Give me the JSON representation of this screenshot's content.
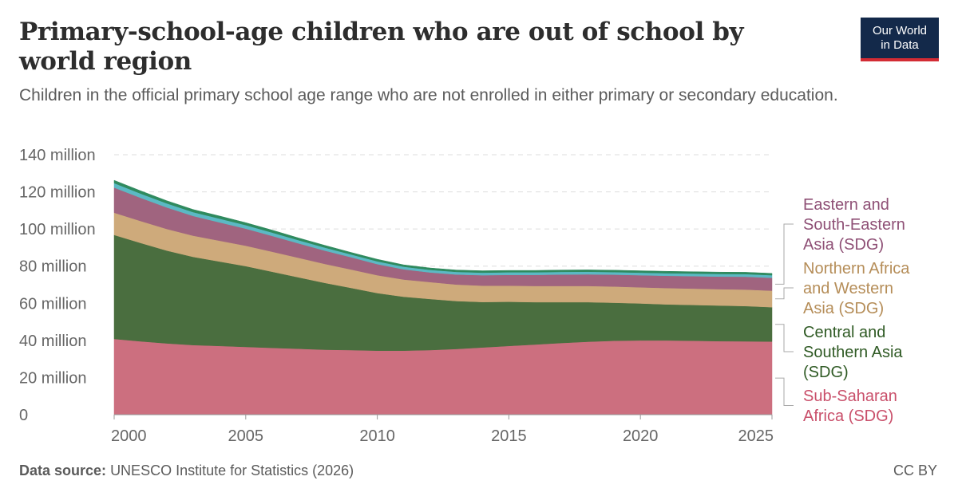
{
  "title": "Primary-school-age children who are out of school by world region",
  "subtitle": "Children in the official primary school age range who are not enrolled in either primary or secondary education.",
  "logo": {
    "line1": "Our World",
    "line2": "in Data"
  },
  "footer": {
    "source_label": "Data source:",
    "source_text": "UNESCO Institute for Statistics (2026)",
    "license": "CC BY"
  },
  "chart_data": {
    "type": "area",
    "stacked": true,
    "x": [
      2000,
      2001,
      2002,
      2003,
      2004,
      2005,
      2006,
      2007,
      2008,
      2009,
      2010,
      2011,
      2012,
      2013,
      2014,
      2015,
      2016,
      2017,
      2018,
      2019,
      2020,
      2021,
      2022,
      2023,
      2024,
      2025
    ],
    "xticks": [
      "2000",
      "2005",
      "2010",
      "2015",
      "2020",
      "2025"
    ],
    "yticks": [
      "0",
      "20 million",
      "40 million",
      "60 million",
      "80 million",
      "100 million",
      "120 million",
      "140 million"
    ],
    "ylim": [
      0,
      140
    ],
    "grid": true,
    "legend_position": "right",
    "series": [
      {
        "name": "Sub-Saharan Africa (SDG)",
        "color": "#cc6f7f",
        "label_color": "#c94f6a",
        "values": [
          40.8,
          39.5,
          38.4,
          37.5,
          37.0,
          36.5,
          36.0,
          35.5,
          35.0,
          34.8,
          34.5,
          34.5,
          34.8,
          35.4,
          36.2,
          37.0,
          37.8,
          38.6,
          39.3,
          39.8,
          40.0,
          40.0,
          39.8,
          39.6,
          39.5,
          39.4
        ]
      },
      {
        "name": "Central and Southern Asia (SDG)",
        "color": "#4a6e3f",
        "label_color": "#2f5a24",
        "values": [
          56.0,
          53.0,
          50.0,
          47.5,
          45.5,
          43.5,
          41.0,
          38.5,
          36.0,
          33.5,
          31.0,
          29.0,
          27.5,
          25.8,
          24.5,
          23.8,
          22.8,
          22.0,
          21.3,
          20.5,
          19.9,
          19.4,
          19.3,
          19.2,
          19.0,
          18.5
        ]
      },
      {
        "name": "Northern Africa and Western Asia (SDG)",
        "color": "#ceaa7b",
        "label_color": "#b58d58",
        "values": [
          12.0,
          11.8,
          11.6,
          11.4,
          11.2,
          11.0,
          10.8,
          10.5,
          10.2,
          9.9,
          9.6,
          9.3,
          9.1,
          8.9,
          8.8,
          8.7,
          8.7,
          8.7,
          8.7,
          8.7,
          8.7,
          8.8,
          8.8,
          8.8,
          8.9,
          8.9
        ]
      },
      {
        "name": "Eastern and South-Eastern Asia (SDG)",
        "color": "#a0647f",
        "label_color": "#8e4f75",
        "values": [
          13.5,
          12.5,
          11.6,
          10.6,
          9.9,
          9.2,
          8.5,
          7.8,
          7.2,
          6.6,
          6.0,
          5.5,
          5.2,
          5.4,
          5.6,
          5.8,
          6.0,
          6.2,
          6.3,
          6.4,
          6.5,
          6.6,
          6.7,
          6.8,
          6.9,
          6.9
        ]
      },
      {
        "name": "",
        "color": "#5bb9c4",
        "label_color": "#5bb9c4",
        "values": [
          2.4,
          2.3,
          2.2,
          2.1,
          2.0,
          1.9,
          1.8,
          1.7,
          1.6,
          1.5,
          1.5,
          1.4,
          1.4,
          1.4,
          1.4,
          1.4,
          1.4,
          1.4,
          1.4,
          1.4,
          1.4,
          1.4,
          1.4,
          1.4,
          1.4,
          1.4
        ]
      },
      {
        "name": "",
        "color": "#2f8a5e",
        "label_color": "#2f8a5e",
        "values": [
          1.5,
          1.5,
          1.4,
          1.4,
          1.4,
          1.3,
          1.3,
          1.2,
          1.2,
          1.1,
          1.1,
          1.0,
          1.0,
          1.0,
          1.0,
          1.0,
          1.0,
          1.0,
          1.0,
          1.0,
          1.0,
          1.0,
          1.0,
          1.0,
          1.0,
          1.0
        ]
      }
    ]
  }
}
